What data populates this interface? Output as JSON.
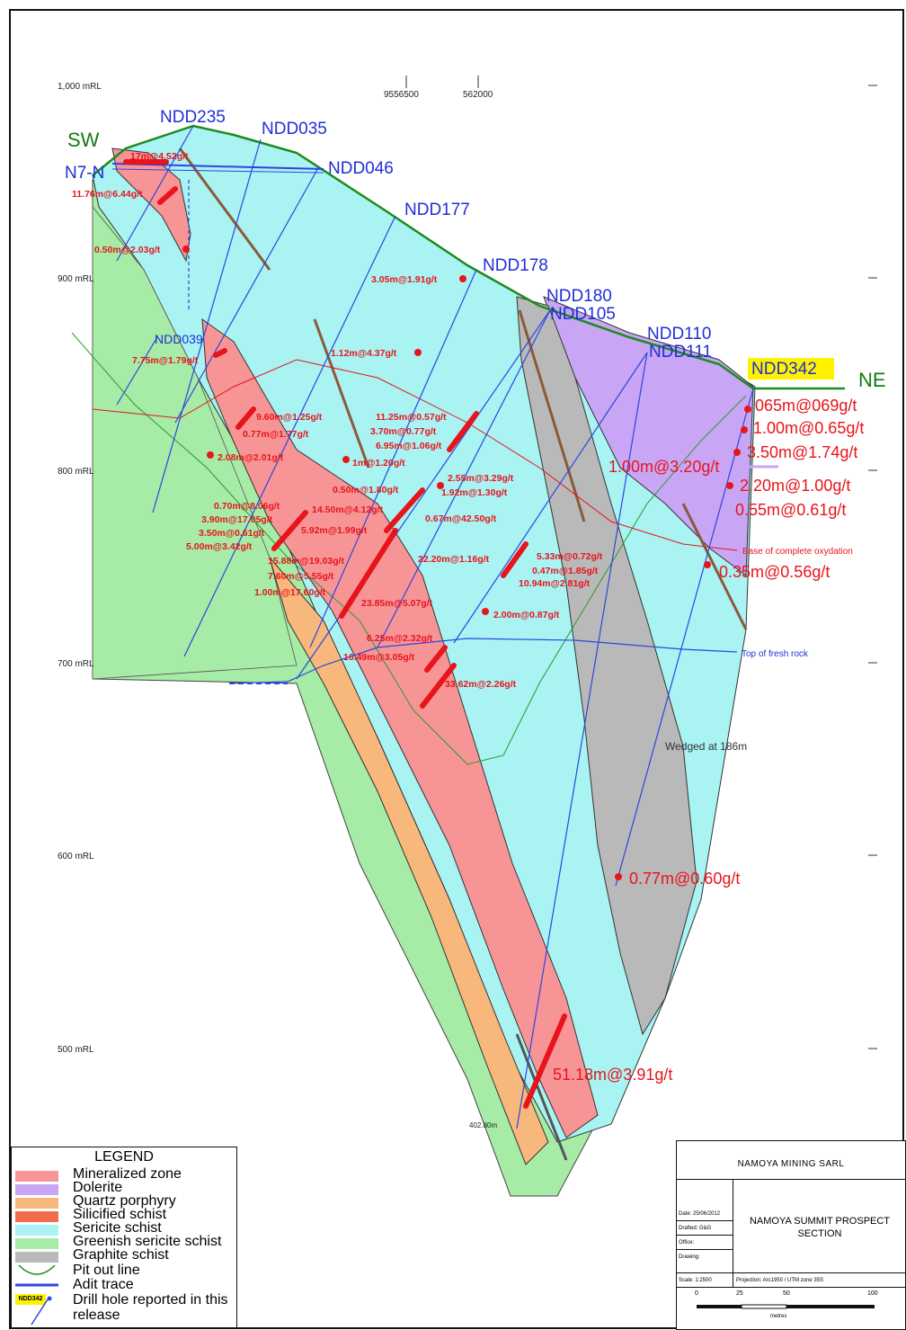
{
  "rl_labels": [
    "1,000 mRL",
    "900 mRL",
    "800 mRL",
    "700 mRL",
    "600 mRL",
    "500 mRL"
  ],
  "grid_refs": [
    "9556500",
    "562000"
  ],
  "direction": {
    "sw": "SW",
    "ne": "NE"
  },
  "holes": {
    "ndd235": "NDD235",
    "ndd035": "NDD035",
    "n7n": "N7-N",
    "ndd046": "NDD046",
    "ndd177": "NDD177",
    "ndd178": "NDD178",
    "ndd180": "NDD180",
    "ndd105": "NDD105",
    "ndd110": "NDD110",
    "ndd111": "NDD111",
    "ndd342": "NDD342",
    "ndd039": "NDD039"
  },
  "intercepts_small": [
    "17m@4.52g/t",
    "11.76m@6.44g/t",
    "0.50m@2.03g/t",
    "3.05m@1.91g/t",
    "7.75m@1.79g/t",
    "1.12m@4.37g/t",
    "9.60m@1.25g/t",
    "0.77m@1.77g/t",
    "2.08m@2.01g/t",
    "11.25m@0.57g/t",
    "3.70m@0.77g/t",
    "6.95m@1.06g/t",
    "1m@1.20g/t",
    "0.50m@1.80g/t",
    "2.55m@3.29g/t",
    "1.92m@1.30g/t",
    "0.70m@8.06g/t",
    "14.50m@4.12g/t",
    "0.67m@42.50g/t",
    "3.90m@17.05g/t",
    "3.50m@0.61g/t",
    "5.92m@1.99g/t",
    "5.00m@3.42g/t",
    "15.88m@19.03g/t",
    "22.20m@1.16g/t",
    "5.33m@0.72g/t",
    "0.47m@1.85g/t",
    "7.60m@5.55g/t",
    "10.94m@2.81g/t",
    "1.00m@17.60g/t",
    "23.85m@5.07g/t",
    "2.00m@0.87g/t",
    "6.25m@2.32g/t",
    "16.49m@3.05g/t",
    "33.62m@2.26g/t"
  ],
  "intercepts_big": [
    "065m@069g/t",
    "1.00m@0.65g/t",
    "3.50m@1.74g/t",
    "1.00m@3.20g/t",
    "2.20m@1.00g/t",
    "0.55m@0.61g/t",
    "0.35m@0.56g/t",
    "0.77m@0.60g/t",
    "51.18m@3.91g/t"
  ],
  "notes": {
    "oxidation": "Base of complete oxydation",
    "fresh_rock": "Top of fresh rock",
    "wedged": "Wedged at 186m",
    "eoh": "402.80m"
  },
  "legend": {
    "title": "LEGEND",
    "items": [
      {
        "label": "Mineralized zone",
        "color": "#f79596"
      },
      {
        "label": "Dolerite",
        "color": "#c9a6f5"
      },
      {
        "label": "Quartz porphyry",
        "color": "#f8b87c"
      },
      {
        "label": "Silicified schist",
        "color": "#f26b4a"
      },
      {
        "label": "Sericite schist",
        "color": "#a9f3f3"
      },
      {
        "label": "Greenish sericite schist",
        "color": "#a6eba6"
      },
      {
        "label": "Graphite schist",
        "color": "#b9b9b9"
      },
      {
        "label": "Pit out line",
        "color": "#1c8c1c"
      },
      {
        "label": "Adit trace",
        "color": "#2e45e0"
      },
      {
        "label": "Drill hole reported in this release",
        "color": "#2e45e0"
      }
    ],
    "badge": "NDD342"
  },
  "title_block": {
    "company": "NAMOYA MINING SARL",
    "project": "NAMOYA SUMMIT PROSPECT SECTION",
    "fields": [
      "Date: 25/06/2012",
      "Drafted: G&G",
      "Office:",
      "Drawing:",
      "Scale: 1:2500"
    ],
    "projection": "Projection: Arc1950 / UTM zone 35S",
    "scale_ticks": [
      "0",
      "25",
      "50",
      "100"
    ],
    "scale_unit": "metres"
  }
}
